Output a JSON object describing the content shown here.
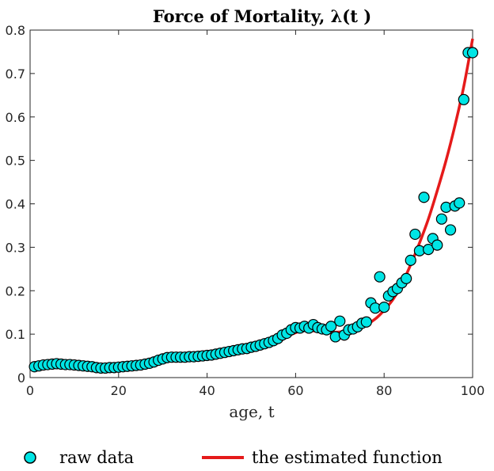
{
  "chart_data": {
    "type": "scatter+line",
    "title": "Force of Mortality, λ(t )",
    "xlabel": "age, t",
    "ylabel": "",
    "xlim": [
      0,
      100
    ],
    "ylim": [
      0,
      0.8
    ],
    "xticks": [
      0,
      20,
      40,
      60,
      80,
      100
    ],
    "yticks": [
      0,
      0.1,
      0.2,
      0.3,
      0.4,
      0.5,
      0.6,
      0.7,
      0.8
    ],
    "xtick_labels": [
      "0",
      "20",
      "40",
      "60",
      "80",
      "100"
    ],
    "ytick_labels": [
      "0",
      "0.1",
      "0.2",
      "0.3",
      "0.4",
      "0.5",
      "0.6",
      "0.7",
      "0.8"
    ],
    "grid": false,
    "legend_placement": "bottom",
    "series": [
      {
        "name": "raw data",
        "kind": "scatter",
        "color": "#00e5e5",
        "edge_color": "#000000",
        "x": [
          1,
          2,
          3,
          4,
          5,
          6,
          7,
          8,
          9,
          10,
          11,
          12,
          13,
          14,
          15,
          16,
          17,
          18,
          19,
          20,
          21,
          22,
          23,
          24,
          25,
          26,
          27,
          28,
          29,
          30,
          31,
          32,
          33,
          34,
          35,
          36,
          37,
          38,
          39,
          40,
          41,
          42,
          43,
          44,
          45,
          46,
          47,
          48,
          49,
          50,
          51,
          52,
          53,
          54,
          55,
          56,
          57,
          58,
          59,
          60,
          61,
          62,
          63,
          64,
          65,
          66,
          67,
          68,
          69,
          70,
          71,
          72,
          73,
          74,
          75,
          76,
          77,
          78,
          79,
          80,
          81,
          82,
          83,
          84,
          85,
          86,
          87,
          88,
          89,
          90,
          91,
          92,
          93,
          94,
          95,
          96,
          97,
          98,
          99,
          100
        ],
        "y": [
          0.025,
          0.027,
          0.029,
          0.03,
          0.031,
          0.032,
          0.031,
          0.03,
          0.03,
          0.029,
          0.028,
          0.027,
          0.026,
          0.025,
          0.023,
          0.022,
          0.022,
          0.023,
          0.023,
          0.024,
          0.025,
          0.026,
          0.027,
          0.028,
          0.029,
          0.031,
          0.033,
          0.036,
          0.04,
          0.043,
          0.046,
          0.047,
          0.047,
          0.047,
          0.047,
          0.048,
          0.048,
          0.049,
          0.05,
          0.051,
          0.052,
          0.054,
          0.056,
          0.058,
          0.06,
          0.062,
          0.064,
          0.066,
          0.067,
          0.07,
          0.072,
          0.075,
          0.078,
          0.081,
          0.085,
          0.09,
          0.098,
          0.102,
          0.11,
          0.115,
          0.114,
          0.118,
          0.114,
          0.122,
          0.115,
          0.112,
          0.11,
          0.118,
          0.094,
          0.13,
          0.098,
          0.11,
          0.112,
          0.117,
          0.125,
          0.128,
          0.172,
          0.16,
          0.232,
          0.162,
          0.188,
          0.198,
          0.205,
          0.218,
          0.228,
          0.27,
          0.33,
          0.292,
          0.415,
          0.295,
          0.32,
          0.305,
          0.365,
          0.392,
          0.34,
          0.395,
          0.402,
          0.64,
          0.748,
          0.748
        ]
      },
      {
        "name": "the estimated function",
        "kind": "line",
        "color": "#e51a1a",
        "x": [
          1,
          5,
          10,
          15,
          20,
          25,
          30,
          35,
          40,
          45,
          50,
          55,
          58,
          61,
          63,
          65,
          67,
          70,
          72,
          75,
          78,
          80,
          82,
          84,
          86,
          88,
          90,
          92,
          94,
          96,
          98,
          100
        ],
        "y": [
          0.035,
          0.031,
          0.028,
          0.026,
          0.027,
          0.03,
          0.037,
          0.043,
          0.05,
          0.058,
          0.068,
          0.082,
          0.095,
          0.107,
          0.109,
          0.106,
          0.104,
          0.105,
          0.108,
          0.116,
          0.135,
          0.155,
          0.18,
          0.215,
          0.26,
          0.31,
          0.365,
          0.43,
          0.5,
          0.58,
          0.67,
          0.78
        ]
      }
    ]
  }
}
